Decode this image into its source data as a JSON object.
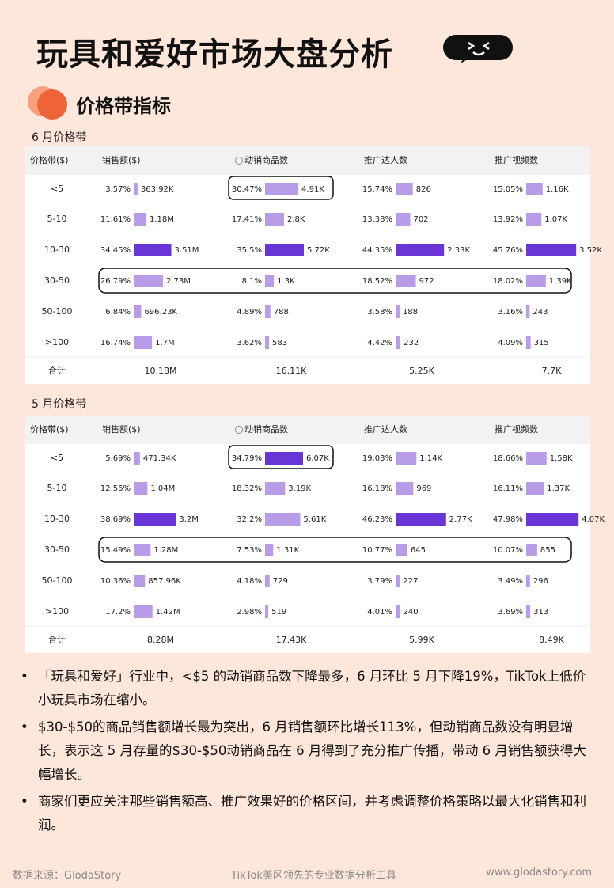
{
  "header": {
    "title": "玩具和爱好市场大盘分析"
  },
  "section": {
    "title": "价格带指标"
  },
  "tables": [
    {
      "title": "6 月价格带",
      "headers": [
        "价格带($)",
        "销售额($)",
        "动销商品数",
        "推广达人数",
        "推广视频数"
      ],
      "rows": [
        {
          "band": "<5",
          "cells": [
            [
              3.57,
              "3.57%",
              "363.92K"
            ],
            [
              30.47,
              "30.47%",
              "4.91K"
            ],
            [
              15.74,
              "15.74%",
              "826"
            ],
            [
              15.05,
              "15.05%",
              "1.16K"
            ]
          ]
        },
        {
          "band": "5-10",
          "cells": [
            [
              11.61,
              "11.61%",
              "1.18M"
            ],
            [
              17.41,
              "17.41%",
              "2.8K"
            ],
            [
              13.38,
              "13.38%",
              "702"
            ],
            [
              13.92,
              "13.92%",
              "1.07K"
            ]
          ]
        },
        {
          "band": "10-30",
          "cells": [
            [
              34.45,
              "34.45%",
              "3.51M"
            ],
            [
              35.5,
              "35.5%",
              "5.72K"
            ],
            [
              44.35,
              "44.35%",
              "2.33K"
            ],
            [
              45.76,
              "45.76%",
              "3.52K"
            ]
          ]
        },
        {
          "band": "30-50",
          "cells": [
            [
              26.79,
              "26.79%",
              "2.73M"
            ],
            [
              8.1,
              "8.1%",
              "1.3K"
            ],
            [
              18.52,
              "18.52%",
              "972"
            ],
            [
              18.02,
              "18.02%",
              "1.39K"
            ]
          ]
        },
        {
          "band": "50-100",
          "cells": [
            [
              6.84,
              "6.84%",
              "696.23K"
            ],
            [
              4.89,
              "4.89%",
              "788"
            ],
            [
              3.58,
              "3.58%",
              "188"
            ],
            [
              3.16,
              "3.16%",
              "243"
            ]
          ]
        },
        {
          "band": ">100",
          "cells": [
            [
              16.74,
              "16.74%",
              "1.7M"
            ],
            [
              3.62,
              "3.62%",
              "583"
            ],
            [
              4.42,
              "4.42%",
              "232"
            ],
            [
              4.09,
              "4.09%",
              "315"
            ]
          ]
        }
      ],
      "total": [
        "合计",
        "10.18M",
        "16.11K",
        "5.25K",
        "7.7K"
      ]
    },
    {
      "title": "5 月价格带",
      "headers": [
        "价格带($)",
        "销售额($)",
        "动销商品数",
        "推广达人数",
        "推广视频数"
      ],
      "rows": [
        {
          "band": "<5",
          "cells": [
            [
              5.69,
              "5.69%",
              "471.34K"
            ],
            [
              34.79,
              "34.79%",
              "6.07K"
            ],
            [
              19.03,
              "19.03%",
              "1.14K"
            ],
            [
              18.66,
              "18.66%",
              "1.58K"
            ]
          ]
        },
        {
          "band": "5-10",
          "cells": [
            [
              12.56,
              "12.56%",
              "1.04M"
            ],
            [
              18.32,
              "18.32%",
              "3.19K"
            ],
            [
              16.18,
              "16.18%",
              "969"
            ],
            [
              16.11,
              "16.11%",
              "1.37K"
            ]
          ]
        },
        {
          "band": "10-30",
          "cells": [
            [
              38.69,
              "38.69%",
              "3.2M"
            ],
            [
              32.2,
              "32.2%",
              "5.61K"
            ],
            [
              46.23,
              "46.23%",
              "2.77K"
            ],
            [
              47.98,
              "47.98%",
              "4.07K"
            ]
          ]
        },
        {
          "band": "30-50",
          "cells": [
            [
              15.49,
              "15.49%",
              "1.28M"
            ],
            [
              7.53,
              "7.53%",
              "1.31K"
            ],
            [
              10.77,
              "10.77%",
              "645"
            ],
            [
              10.07,
              "10.07%",
              "855"
            ]
          ]
        },
        {
          "band": "50-100",
          "cells": [
            [
              10.36,
              "10.36%",
              "857.96K"
            ],
            [
              4.18,
              "4.18%",
              "729"
            ],
            [
              3.79,
              "3.79%",
              "227"
            ],
            [
              3.49,
              "3.49%",
              "296"
            ]
          ]
        },
        {
          "band": ">100",
          "cells": [
            [
              17.2,
              "17.2%",
              "1.42M"
            ],
            [
              2.98,
              "2.98%",
              "519"
            ],
            [
              4.01,
              "4.01%",
              "240"
            ],
            [
              3.69,
              "3.69%",
              "313"
            ]
          ]
        }
      ],
      "total": [
        "合计",
        "8.28M",
        "17.43K",
        "5.99K",
        "8.49K"
      ]
    }
  ],
  "bullets": [
    "「玩具和爱好」行业中，<$5 的动销商品数下降最多，6 月环比 5 月下降19%，TikTok上低价小玩具市场在缩小。",
    "$30-$50的商品销售额增长最为突出，6 月销售额环比增长113%，但动销商品数没有明显增长，表示这 5 月存量的$30-$50动销商品在 6 月得到了充分推广传播，带动 6 月销售额获得大幅增长。",
    "商家们更应关注那些销售额高、推广效果好的价格区间，并考虑调整价格策略以最大化销售和利润。"
  ],
  "footer": {
    "source": "数据来源：GlodaStory",
    "tagline": "TikTok美区领先的专业数据分析工具",
    "url": "www.glodastory.com"
  }
}
